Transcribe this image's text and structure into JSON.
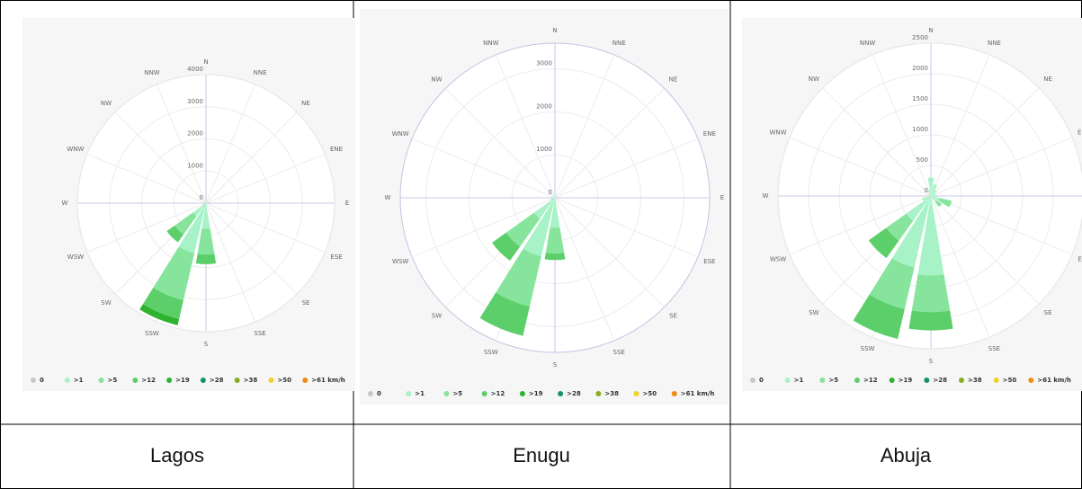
{
  "chart_data": [
    {
      "type": "windrose",
      "title": "Lagos",
      "categories": [
        "N",
        "NNE",
        "NE",
        "ENE",
        "E",
        "ESE",
        "SE",
        "SSE",
        "S",
        "SSW",
        "SW",
        "WSW",
        "W",
        "WNW",
        "NW",
        "NNW"
      ],
      "ylim": [
        0,
        4000
      ],
      "yticks": [
        0,
        1000,
        2000,
        3000,
        4000
      ],
      "series": [
        {
          "name": "0",
          "color": "#c8c8c8",
          "values": [
            0,
            0,
            0,
            0,
            0,
            0,
            0,
            0,
            0,
            0,
            0,
            0,
            0,
            0,
            0,
            0
          ]
        },
        {
          "name": ">1",
          "color": "#a8f2c8",
          "values": [
            60,
            40,
            20,
            0,
            0,
            0,
            0,
            40,
            800,
            1600,
            500,
            100,
            0,
            0,
            0,
            20
          ]
        },
        {
          "name": ">5",
          "color": "#86e49c",
          "values": [
            0,
            0,
            0,
            0,
            0,
            0,
            0,
            0,
            800,
            1500,
            700,
            0,
            0,
            0,
            0,
            0
          ]
        },
        {
          "name": ">12",
          "color": "#5ccf6a",
          "values": [
            0,
            0,
            0,
            0,
            0,
            0,
            0,
            0,
            300,
            600,
            300,
            0,
            0,
            0,
            0,
            0
          ]
        },
        {
          "name": ">19",
          "color": "#2db32e",
          "values": [
            0,
            0,
            0,
            0,
            0,
            0,
            0,
            0,
            0,
            200,
            0,
            0,
            0,
            0,
            0,
            0
          ]
        },
        {
          "name": ">28",
          "color": "#17906a",
          "values": [
            0,
            0,
            0,
            0,
            0,
            0,
            0,
            0,
            0,
            0,
            0,
            0,
            0,
            0,
            0,
            0
          ]
        },
        {
          "name": ">38",
          "color": "#8aac22",
          "values": [
            0,
            0,
            0,
            0,
            0,
            0,
            0,
            0,
            0,
            0,
            0,
            0,
            0,
            0,
            0,
            0
          ]
        },
        {
          "name": ">50",
          "color": "#f0d226",
          "values": [
            0,
            0,
            0,
            0,
            0,
            0,
            0,
            0,
            0,
            0,
            0,
            0,
            0,
            0,
            0,
            0
          ]
        },
        {
          "name": ">61 km/h",
          "color": "#f08c14",
          "values": [
            0,
            0,
            0,
            0,
            0,
            0,
            0,
            0,
            0,
            0,
            0,
            0,
            0,
            0,
            0,
            0
          ]
        }
      ]
    },
    {
      "type": "windrose",
      "title": "Enugu",
      "categories": [
        "N",
        "NNE",
        "NE",
        "ENE",
        "E",
        "ESE",
        "SE",
        "SSE",
        "S",
        "SSW",
        "SW",
        "WSW",
        "W",
        "WNW",
        "NW",
        "NNW"
      ],
      "ylim": [
        0,
        3600
      ],
      "yticks": [
        0,
        1000,
        2000,
        3000
      ],
      "series": [
        {
          "name": "0",
          "color": "#c8c8c8",
          "values": [
            0,
            0,
            0,
            0,
            0,
            0,
            0,
            0,
            0,
            0,
            0,
            0,
            0,
            0,
            0,
            0
          ]
        },
        {
          "name": ">1",
          "color": "#a8f2c8",
          "values": [
            80,
            40,
            0,
            0,
            0,
            0,
            0,
            0,
            700,
            1400,
            600,
            100,
            0,
            0,
            0,
            40
          ]
        },
        {
          "name": ">5",
          "color": "#86e49c",
          "values": [
            0,
            0,
            0,
            0,
            0,
            0,
            0,
            0,
            600,
            1200,
            800,
            0,
            0,
            0,
            0,
            0
          ]
        },
        {
          "name": ">12",
          "color": "#5ccf6a",
          "values": [
            0,
            0,
            0,
            0,
            0,
            0,
            0,
            0,
            150,
            700,
            400,
            0,
            0,
            0,
            0,
            0
          ]
        },
        {
          "name": ">19",
          "color": "#2db32e",
          "values": [
            0,
            0,
            0,
            0,
            0,
            0,
            0,
            0,
            0,
            0,
            0,
            0,
            0,
            0,
            0,
            0
          ]
        },
        {
          "name": ">28",
          "color": "#17906a",
          "values": [
            0,
            0,
            0,
            0,
            0,
            0,
            0,
            0,
            0,
            0,
            0,
            0,
            0,
            0,
            0,
            0
          ]
        },
        {
          "name": ">38",
          "color": "#8aac22",
          "values": [
            0,
            0,
            0,
            0,
            0,
            0,
            0,
            0,
            0,
            0,
            0,
            0,
            0,
            0,
            0,
            0
          ]
        },
        {
          "name": ">50",
          "color": "#f0d226",
          "values": [
            0,
            0,
            0,
            0,
            0,
            0,
            0,
            0,
            0,
            0,
            0,
            0,
            0,
            0,
            0,
            0
          ]
        },
        {
          "name": ">61 km/h",
          "color": "#f08c14",
          "values": [
            0,
            0,
            0,
            0,
            0,
            0,
            0,
            0,
            0,
            0,
            0,
            0,
            0,
            0,
            0,
            0
          ]
        }
      ]
    },
    {
      "type": "windrose",
      "title": "Abuja",
      "categories": [
        "N",
        "NNE",
        "NE",
        "ENE",
        "E",
        "ESE",
        "SE",
        "SSE",
        "S",
        "SSW",
        "SW",
        "WSW",
        "W",
        "WNW",
        "NW",
        "NNW"
      ],
      "ylim": [
        0,
        2500
      ],
      "yticks": [
        0,
        500,
        1000,
        1500,
        2000,
        2500
      ],
      "series": [
        {
          "name": "0",
          "color": "#c8c8c8",
          "values": [
            0,
            0,
            0,
            0,
            0,
            0,
            0,
            0,
            0,
            0,
            0,
            0,
            0,
            0,
            0,
            0
          ]
        },
        {
          "name": ">1",
          "color": "#a8f2c8",
          "values": [
            300,
            200,
            120,
            80,
            100,
            150,
            120,
            0,
            1300,
            1200,
            500,
            150,
            0,
            0,
            0,
            100
          ]
        },
        {
          "name": ">5",
          "color": "#86e49c",
          "values": [
            0,
            0,
            0,
            0,
            0,
            200,
            100,
            0,
            600,
            700,
            400,
            0,
            0,
            0,
            0,
            0
          ]
        },
        {
          "name": ">12",
          "color": "#5ccf6a",
          "values": [
            0,
            0,
            0,
            0,
            0,
            0,
            0,
            0,
            300,
            500,
            350,
            0,
            0,
            0,
            0,
            0
          ]
        },
        {
          "name": ">19",
          "color": "#2db32e",
          "values": [
            0,
            0,
            0,
            0,
            0,
            0,
            0,
            0,
            0,
            0,
            0,
            0,
            0,
            0,
            0,
            0
          ]
        },
        {
          "name": ">28",
          "color": "#17906a",
          "values": [
            0,
            0,
            0,
            0,
            0,
            0,
            0,
            0,
            0,
            0,
            0,
            0,
            0,
            0,
            0,
            0
          ]
        },
        {
          "name": ">38",
          "color": "#8aac22",
          "values": [
            0,
            0,
            0,
            0,
            0,
            0,
            0,
            0,
            0,
            0,
            0,
            0,
            0,
            0,
            0,
            0
          ]
        },
        {
          "name": ">50",
          "color": "#f0d226",
          "values": [
            0,
            0,
            0,
            0,
            0,
            0,
            0,
            0,
            0,
            0,
            0,
            0,
            0,
            0,
            0,
            0
          ]
        },
        {
          "name": ">61 km/h",
          "color": "#f08c14",
          "values": [
            0,
            0,
            0,
            0,
            0,
            0,
            0,
            0,
            0,
            0,
            0,
            0,
            0,
            0,
            0,
            0
          ]
        }
      ]
    }
  ]
}
